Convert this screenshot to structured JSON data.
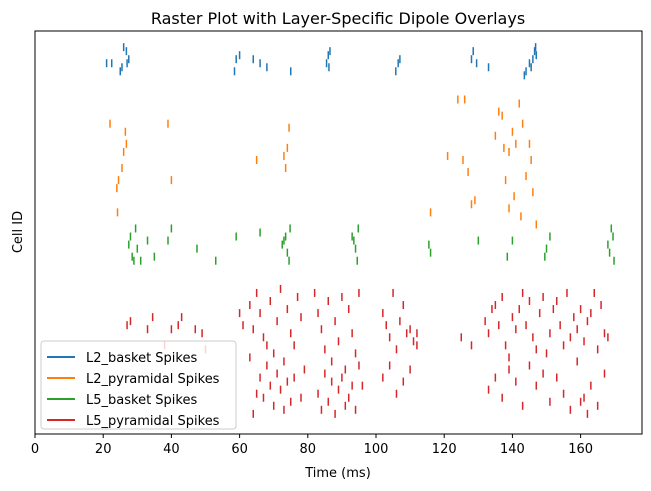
{
  "chart_data": {
    "type": "scatter",
    "title": "Raster Plot with Layer-Specific Dipole Overlays",
    "xlabel": "Time (ms)",
    "ylabel": "Cell ID",
    "xlim": [
      0,
      178
    ],
    "ylim": [
      0,
      100
    ],
    "x_ticks": [
      0,
      20,
      40,
      60,
      80,
      100,
      120,
      140,
      160
    ],
    "y_ticks_visible": false,
    "grid": false,
    "legend_position": "lower-left",
    "marker": "vertical-tick",
    "series": [
      {
        "name": "L2_basket Spikes",
        "color": "#1f77b4",
        "spikes": [
          [
            22.5,
            92
          ],
          [
            25.5,
            91
          ],
          [
            26.8,
            95
          ],
          [
            27.5,
            93
          ],
          [
            26,
            96
          ],
          [
            25,
            90
          ],
          [
            27,
            92
          ],
          [
            21,
            92
          ],
          [
            59,
            93
          ],
          [
            60,
            94
          ],
          [
            58.5,
            90
          ],
          [
            64,
            93
          ],
          [
            66,
            92
          ],
          [
            68,
            91
          ],
          [
            75,
            90
          ],
          [
            85.5,
            92
          ],
          [
            86,
            94
          ],
          [
            86.5,
            95
          ],
          [
            86.2,
            91
          ],
          [
            106.5,
            92
          ],
          [
            107,
            93
          ],
          [
            105.8,
            90
          ],
          [
            128,
            93
          ],
          [
            128.5,
            95
          ],
          [
            129.5,
            92
          ],
          [
            133,
            91
          ],
          [
            145.5,
            91
          ],
          [
            146,
            93
          ],
          [
            146.5,
            95
          ],
          [
            145,
            92
          ],
          [
            144,
            90
          ],
          [
            146.8,
            96
          ],
          [
            143.5,
            89
          ],
          [
            147,
            94
          ]
        ]
      },
      {
        "name": "L2_pyramidal Spikes",
        "color": "#ff7f0e",
        "spikes": [
          [
            22,
            77
          ],
          [
            26.5,
            75
          ],
          [
            26,
            70
          ],
          [
            25.5,
            66
          ],
          [
            24.5,
            63
          ],
          [
            24,
            61
          ],
          [
            24.2,
            55
          ],
          [
            26.8,
            72
          ],
          [
            39,
            77
          ],
          [
            40,
            63
          ],
          [
            65,
            68
          ],
          [
            73,
            69
          ],
          [
            74,
            71
          ],
          [
            74.5,
            76
          ],
          [
            73.5,
            66
          ],
          [
            116,
            55
          ],
          [
            121,
            69
          ],
          [
            124,
            83
          ],
          [
            126,
            83
          ],
          [
            125.5,
            68
          ],
          [
            127,
            65
          ],
          [
            128,
            57
          ],
          [
            129,
            58
          ],
          [
            135,
            74
          ],
          [
            136,
            80
          ],
          [
            137,
            79
          ],
          [
            138,
            63
          ],
          [
            139,
            70
          ],
          [
            140,
            75
          ],
          [
            141,
            72
          ],
          [
            142,
            82
          ],
          [
            143,
            77
          ],
          [
            144,
            64
          ],
          [
            145,
            72
          ],
          [
            146,
            60
          ],
          [
            147,
            52
          ],
          [
            139,
            56
          ],
          [
            140.5,
            59
          ],
          [
            142.5,
            54
          ],
          [
            145.5,
            68
          ],
          [
            137.5,
            71
          ]
        ]
      },
      {
        "name": "L5_basket Spikes",
        "color": "#2ca02c",
        "spikes": [
          [
            27.5,
            47
          ],
          [
            28,
            49
          ],
          [
            28.5,
            44
          ],
          [
            29,
            43
          ],
          [
            30,
            46
          ],
          [
            29.5,
            51
          ],
          [
            31,
            43
          ],
          [
            33,
            48
          ],
          [
            35,
            44
          ],
          [
            40,
            51
          ],
          [
            39,
            48
          ],
          [
            47.5,
            46
          ],
          [
            53,
            43
          ],
          [
            59,
            49
          ],
          [
            66,
            50
          ],
          [
            72.5,
            47
          ],
          [
            73.5,
            49
          ],
          [
            74,
            45
          ],
          [
            74.5,
            43
          ],
          [
            73,
            48
          ],
          [
            74.8,
            51
          ],
          [
            93.5,
            48
          ],
          [
            94,
            46
          ],
          [
            94.5,
            43
          ],
          [
            93,
            49
          ],
          [
            94.8,
            51
          ],
          [
            115.5,
            47
          ],
          [
            116,
            45
          ],
          [
            130,
            48
          ],
          [
            138.5,
            44
          ],
          [
            140,
            48
          ],
          [
            149.5,
            44
          ],
          [
            150,
            46
          ],
          [
            151,
            49
          ],
          [
            168,
            47
          ],
          [
            168.5,
            45
          ],
          [
            169,
            51
          ],
          [
            169.5,
            49
          ],
          [
            169.8,
            43
          ]
        ]
      },
      {
        "name": "L5_pyramidal Spikes",
        "color": "#d62728",
        "spikes": [
          [
            27,
            27
          ],
          [
            28,
            28
          ],
          [
            33,
            26
          ],
          [
            34.5,
            29
          ],
          [
            38,
            22
          ],
          [
            40,
            26
          ],
          [
            42,
            27
          ],
          [
            43,
            29
          ],
          [
            47,
            26
          ],
          [
            49,
            25
          ],
          [
            50,
            21
          ],
          [
            60,
            30
          ],
          [
            61,
            27
          ],
          [
            63,
            32
          ],
          [
            64,
            26
          ],
          [
            65,
            35
          ],
          [
            66,
            30
          ],
          [
            67,
            24
          ],
          [
            68,
            22
          ],
          [
            69,
            33
          ],
          [
            70,
            20
          ],
          [
            71,
            28
          ],
          [
            72,
            36
          ],
          [
            73,
            18
          ],
          [
            74,
            31
          ],
          [
            75,
            25
          ],
          [
            76,
            22
          ],
          [
            77,
            34
          ],
          [
            78,
            29
          ],
          [
            79,
            16
          ],
          [
            65,
            10
          ],
          [
            66,
            14
          ],
          [
            67,
            9
          ],
          [
            68,
            17
          ],
          [
            69,
            12
          ],
          [
            70,
            7
          ],
          [
            71,
            15
          ],
          [
            72,
            11
          ],
          [
            73,
            6
          ],
          [
            74,
            13
          ],
          [
            75,
            8
          ],
          [
            63,
            19
          ],
          [
            64,
            5
          ],
          [
            76,
            14
          ],
          [
            78,
            9
          ],
          [
            82,
            35
          ],
          [
            83,
            30
          ],
          [
            84,
            26
          ],
          [
            85,
            21
          ],
          [
            86,
            33
          ],
          [
            87,
            18
          ],
          [
            88,
            28
          ],
          [
            89,
            23
          ],
          [
            90,
            34
          ],
          [
            91,
            16
          ],
          [
            92,
            31
          ],
          [
            93,
            25
          ],
          [
            94,
            20
          ],
          [
            95,
            35
          ],
          [
            96,
            12
          ],
          [
            83,
            10
          ],
          [
            84,
            6
          ],
          [
            85,
            15
          ],
          [
            86,
            8
          ],
          [
            87,
            13
          ],
          [
            88,
            5
          ],
          [
            89,
            11
          ],
          [
            90,
            14
          ],
          [
            91,
            7
          ],
          [
            92,
            9
          ],
          [
            93,
            12
          ],
          [
            94,
            6
          ],
          [
            95,
            17
          ],
          [
            102,
            30
          ],
          [
            103,
            27
          ],
          [
            104,
            24
          ],
          [
            105,
            35
          ],
          [
            106,
            21
          ],
          [
            107,
            28
          ],
          [
            108,
            32
          ],
          [
            109,
            25
          ],
          [
            110,
            26
          ],
          [
            111,
            23
          ],
          [
            112,
            25
          ],
          [
            102,
            14
          ],
          [
            104,
            17
          ],
          [
            106,
            10
          ],
          [
            108,
            13
          ],
          [
            110,
            16
          ],
          [
            112,
            22
          ],
          [
            125,
            24
          ],
          [
            128,
            22
          ],
          [
            132,
            28
          ],
          [
            133,
            25
          ],
          [
            134,
            31
          ],
          [
            135,
            32
          ],
          [
            136,
            27
          ],
          [
            137,
            34
          ],
          [
            138,
            22
          ],
          [
            139,
            19
          ],
          [
            140,
            29
          ],
          [
            141,
            26
          ],
          [
            142,
            31
          ],
          [
            143,
            35
          ],
          [
            144,
            27
          ],
          [
            145,
            33
          ],
          [
            146,
            24
          ],
          [
            147,
            21
          ],
          [
            148,
            30
          ],
          [
            149,
            34
          ],
          [
            150,
            20
          ],
          [
            151,
            25
          ],
          [
            152,
            31
          ],
          [
            153,
            33
          ],
          [
            154,
            27
          ],
          [
            155,
            22
          ],
          [
            156,
            35
          ],
          [
            157,
            24
          ],
          [
            158,
            29
          ],
          [
            159,
            26
          ],
          [
            160,
            31
          ],
          [
            161,
            23
          ],
          [
            162,
            28
          ],
          [
            163,
            30
          ],
          [
            164,
            35
          ],
          [
            165,
            21
          ],
          [
            166,
            32
          ],
          [
            167,
            25
          ],
          [
            168,
            24
          ],
          [
            133,
            11
          ],
          [
            135,
            14
          ],
          [
            137,
            9
          ],
          [
            139,
            16
          ],
          [
            141,
            13
          ],
          [
            143,
            7
          ],
          [
            145,
            17
          ],
          [
            147,
            12
          ],
          [
            149,
            15
          ],
          [
            151,
            8
          ],
          [
            153,
            14
          ],
          [
            155,
            10
          ],
          [
            157,
            6
          ],
          [
            159,
            18
          ],
          [
            161,
            9
          ],
          [
            163,
            12
          ],
          [
            165,
            7
          ],
          [
            167,
            15
          ],
          [
            162,
            5
          ],
          [
            160,
            8
          ]
        ]
      }
    ]
  }
}
